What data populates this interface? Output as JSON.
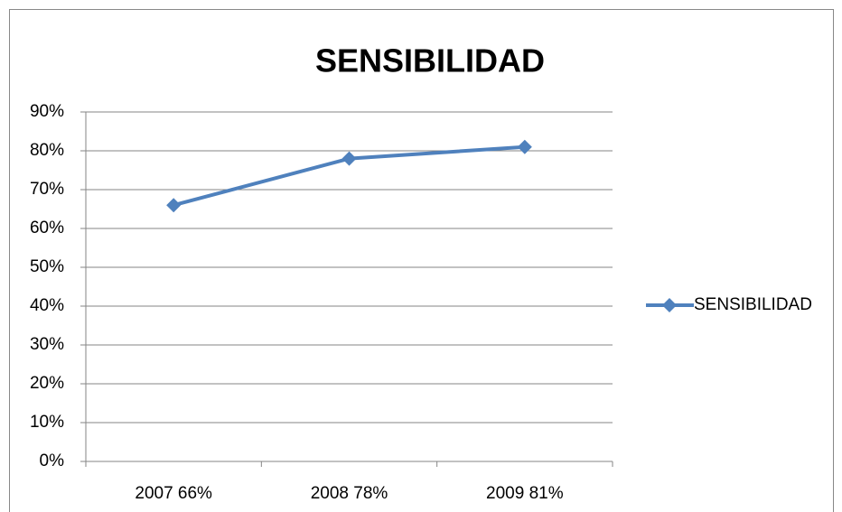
{
  "chart_data": {
    "type": "line",
    "title": "SENSIBILIDAD",
    "categories": [
      "2007 66%",
      "2008 78%",
      "2009 81%"
    ],
    "series": [
      {
        "name": "SENSIBILIDAD",
        "color": "#4f81bd",
        "values": [
          66,
          78,
          81
        ]
      }
    ],
    "ylim": [
      0,
      90
    ],
    "yticks": [
      {
        "value": 0,
        "label": "0%"
      },
      {
        "value": 10,
        "label": "10%"
      },
      {
        "value": 20,
        "label": "20%"
      },
      {
        "value": 30,
        "label": "30%"
      },
      {
        "value": 40,
        "label": "40%"
      },
      {
        "value": 50,
        "label": "50%"
      },
      {
        "value": 60,
        "label": "60%"
      },
      {
        "value": 70,
        "label": "70%"
      },
      {
        "value": 80,
        "label": "80%"
      },
      {
        "value": 90,
        "label": "90%"
      }
    ],
    "grid": true,
    "legend": "right"
  }
}
